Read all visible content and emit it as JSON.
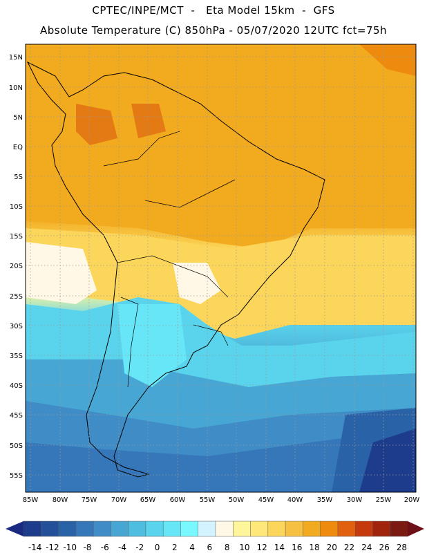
{
  "header": {
    "line1": "CPTEC/INPE/MCT  -   Eta Model 15km  -  GFS",
    "line2": "Absolute Temperature (C) 850hPa - 05/07/2020 12UTC fct=75h"
  },
  "lat_labels": [
    "15N",
    "10N",
    "5N",
    "EQ",
    "5S",
    "10S",
    "15S",
    "20S",
    "25S",
    "30S",
    "35S",
    "40S",
    "45S",
    "50S",
    "55S"
  ],
  "lon_labels": [
    "85W",
    "80W",
    "75W",
    "70W",
    "65W",
    "60W",
    "55W",
    "50W",
    "45W",
    "40W",
    "35W",
    "30W",
    "25W",
    "20W"
  ],
  "colorbar": {
    "labels": [
      "-14",
      "-12",
      "-10",
      "-8",
      "-6",
      "-4",
      "-2",
      "0",
      "2",
      "4",
      "6",
      "8",
      "10",
      "12",
      "14",
      "16",
      "18",
      "20",
      "22",
      "24",
      "26",
      "28"
    ],
    "colors": [
      "#1e3c8c",
      "#244f99",
      "#2a62a8",
      "#3577b8",
      "#3f8cc6",
      "#47a6d3",
      "#4fbde0",
      "#5ad4ec",
      "#66e6f6",
      "#7af8ff",
      "#d2f3ff",
      "#fff8e6",
      "#fff59a",
      "#ffe77a",
      "#fcd65a",
      "#f6c043",
      "#f2aa1e",
      "#ee8a0e",
      "#e06010",
      "#c43a0c",
      "#a0240c",
      "#7a1a10"
    ]
  }
}
